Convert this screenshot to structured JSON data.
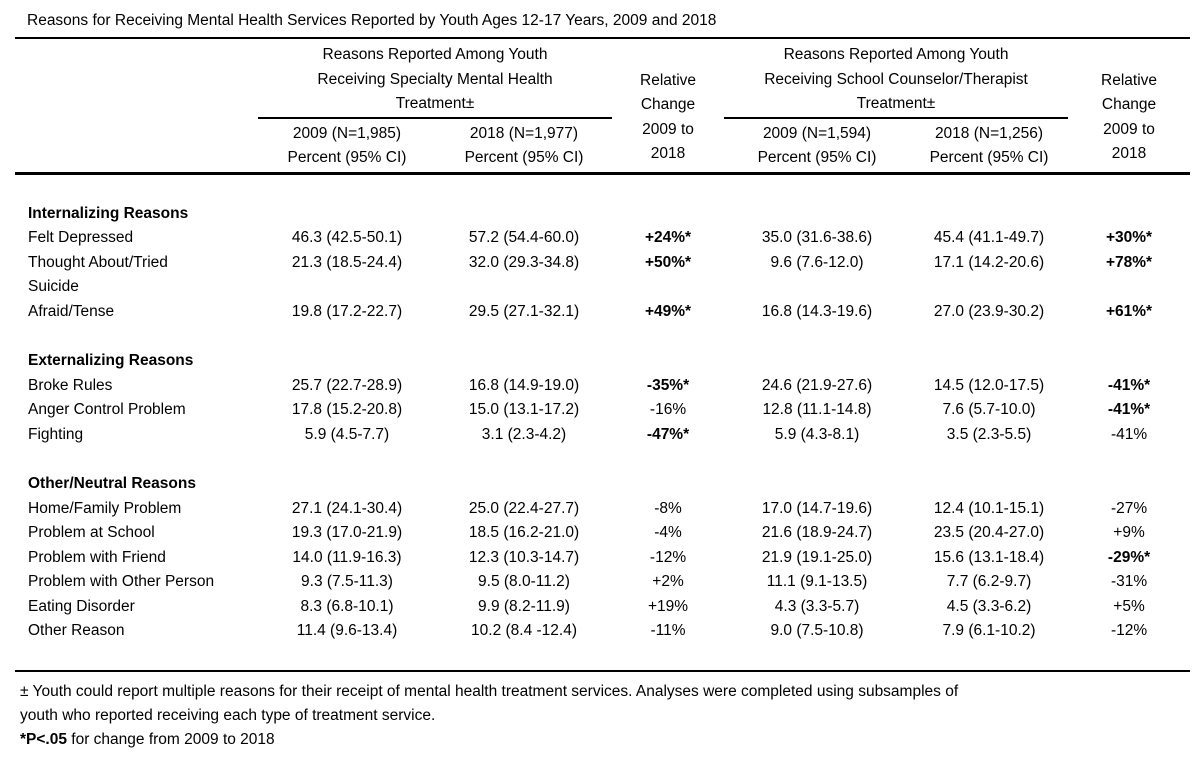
{
  "title": "Reasons for Receiving Mental Health Services Reported by Youth Ages 12-17 Years, 2009 and 2018",
  "table": {
    "relative_change_lines": [
      "Relative",
      "Change",
      "2009 to",
      "2018"
    ],
    "groups": [
      {
        "title_lines": [
          "Reasons Reported Among Youth",
          "Receiving Specialty Mental Health",
          "Treatment±"
        ],
        "columns": [
          {
            "year_n": "2009 (N=1,985)",
            "measure": "Percent (95% CI)"
          },
          {
            "year_n": "2018 (N=1,977)",
            "measure": "Percent (95% CI)"
          }
        ]
      },
      {
        "title_lines": [
          "Reasons Reported Among Youth",
          "Receiving School Counselor/Therapist",
          "Treatment±"
        ],
        "columns": [
          {
            "year_n": "2009 (N=1,594)",
            "measure": "Percent (95% CI)"
          },
          {
            "year_n": "2018 (N=1,256)",
            "measure": "Percent (95% CI)"
          }
        ]
      }
    ],
    "sections": [
      {
        "heading": "Internalizing Reasons",
        "rows": [
          {
            "label": "Felt Depressed",
            "cells": [
              "46.3 (42.5-50.1)",
              "57.2 (54.4-60.0)",
              "+24%*",
              "35.0 (31.6-38.6)",
              "45.4 (41.1-49.7)",
              "+30%*"
            ]
          },
          {
            "label": "Thought About/Tried\nSuicide",
            "cells": [
              "21.3 (18.5-24.4)",
              "32.0 (29.3-34.8)",
              "+50%*",
              "9.6 (7.6-12.0)",
              "17.1 (14.2-20.6)",
              "+78%*"
            ]
          },
          {
            "label": "Afraid/Tense",
            "cells": [
              "19.8 (17.2-22.7)",
              "29.5 (27.1-32.1)",
              "+49%*",
              "16.8 (14.3-19.6)",
              "27.0 (23.9-30.2)",
              "+61%*"
            ]
          }
        ]
      },
      {
        "heading": "Externalizing Reasons",
        "rows": [
          {
            "label": "Broke Rules",
            "cells": [
              "25.7 (22.7-28.9)",
              "16.8 (14.9-19.0)",
              "-35%*",
              "24.6 (21.9-27.6)",
              "14.5 (12.0-17.5)",
              "-41%*"
            ]
          },
          {
            "label": "Anger Control Problem",
            "cells": [
              "17.8 (15.2-20.8)",
              "15.0 (13.1-17.2)",
              "-16%",
              "12.8 (11.1-14.8)",
              "7.6 (5.7-10.0)",
              "-41%*"
            ]
          },
          {
            "label": "Fighting",
            "cells": [
              "5.9 (4.5-7.7)",
              "3.1 (2.3-4.2)",
              "-47%*",
              "5.9 (4.3-8.1)",
              "3.5 (2.3-5.5)",
              "-41%"
            ]
          }
        ]
      },
      {
        "heading": "Other/Neutral Reasons",
        "rows": [
          {
            "label": "Home/Family Problem",
            "cells": [
              "27.1 (24.1-30.4)",
              "25.0 (22.4-27.7)",
              "-8%",
              "17.0 (14.7-19.6)",
              "12.4 (10.1-15.1)",
              "-27%"
            ]
          },
          {
            "label": "Problem at School",
            "cells": [
              "19.3 (17.0-21.9)",
              "18.5 (16.2-21.0)",
              "-4%",
              "21.6 (18.9-24.7)",
              "23.5 (20.4-27.0)",
              "+9%"
            ]
          },
          {
            "label": "Problem with Friend",
            "cells": [
              "14.0 (11.9-16.3)",
              "12.3 (10.3-14.7)",
              "-12%",
              "21.9 (19.1-25.0)",
              "15.6 (13.1-18.4)",
              "-29%*"
            ]
          },
          {
            "label": "Problem with Other Person",
            "cells": [
              "9.3 (7.5-11.3)",
              "9.5 (8.0-11.2)",
              "+2%",
              "11.1 (9.1-13.5)",
              "7.7 (6.2-9.7)",
              "-31%"
            ]
          },
          {
            "label": "Eating Disorder",
            "cells": [
              "8.3 (6.8-10.1)",
              "9.9 (8.2-11.9)",
              "+19%",
              "4.3 (3.3-5.7)",
              "4.5 (3.3-6.2)",
              "+5%"
            ]
          },
          {
            "label": "Other Reason",
            "cells": [
              "11.4 (9.6-13.4)",
              "10.2 (8.4 -12.4)",
              "-11%",
              "9.0 (7.5-10.8)",
              "7.9 (6.1-10.2)",
              "-12%"
            ]
          }
        ]
      }
    ]
  },
  "footnotes": {
    "multiple_reasons": "± Youth could report multiple reasons for their receipt of mental health treatment services. Analyses were completed using subsamples of\nyouth who reported receiving each type of treatment service.",
    "significance_bold": "*P<.05",
    "significance_rest": " for change from 2009 to 2018"
  }
}
